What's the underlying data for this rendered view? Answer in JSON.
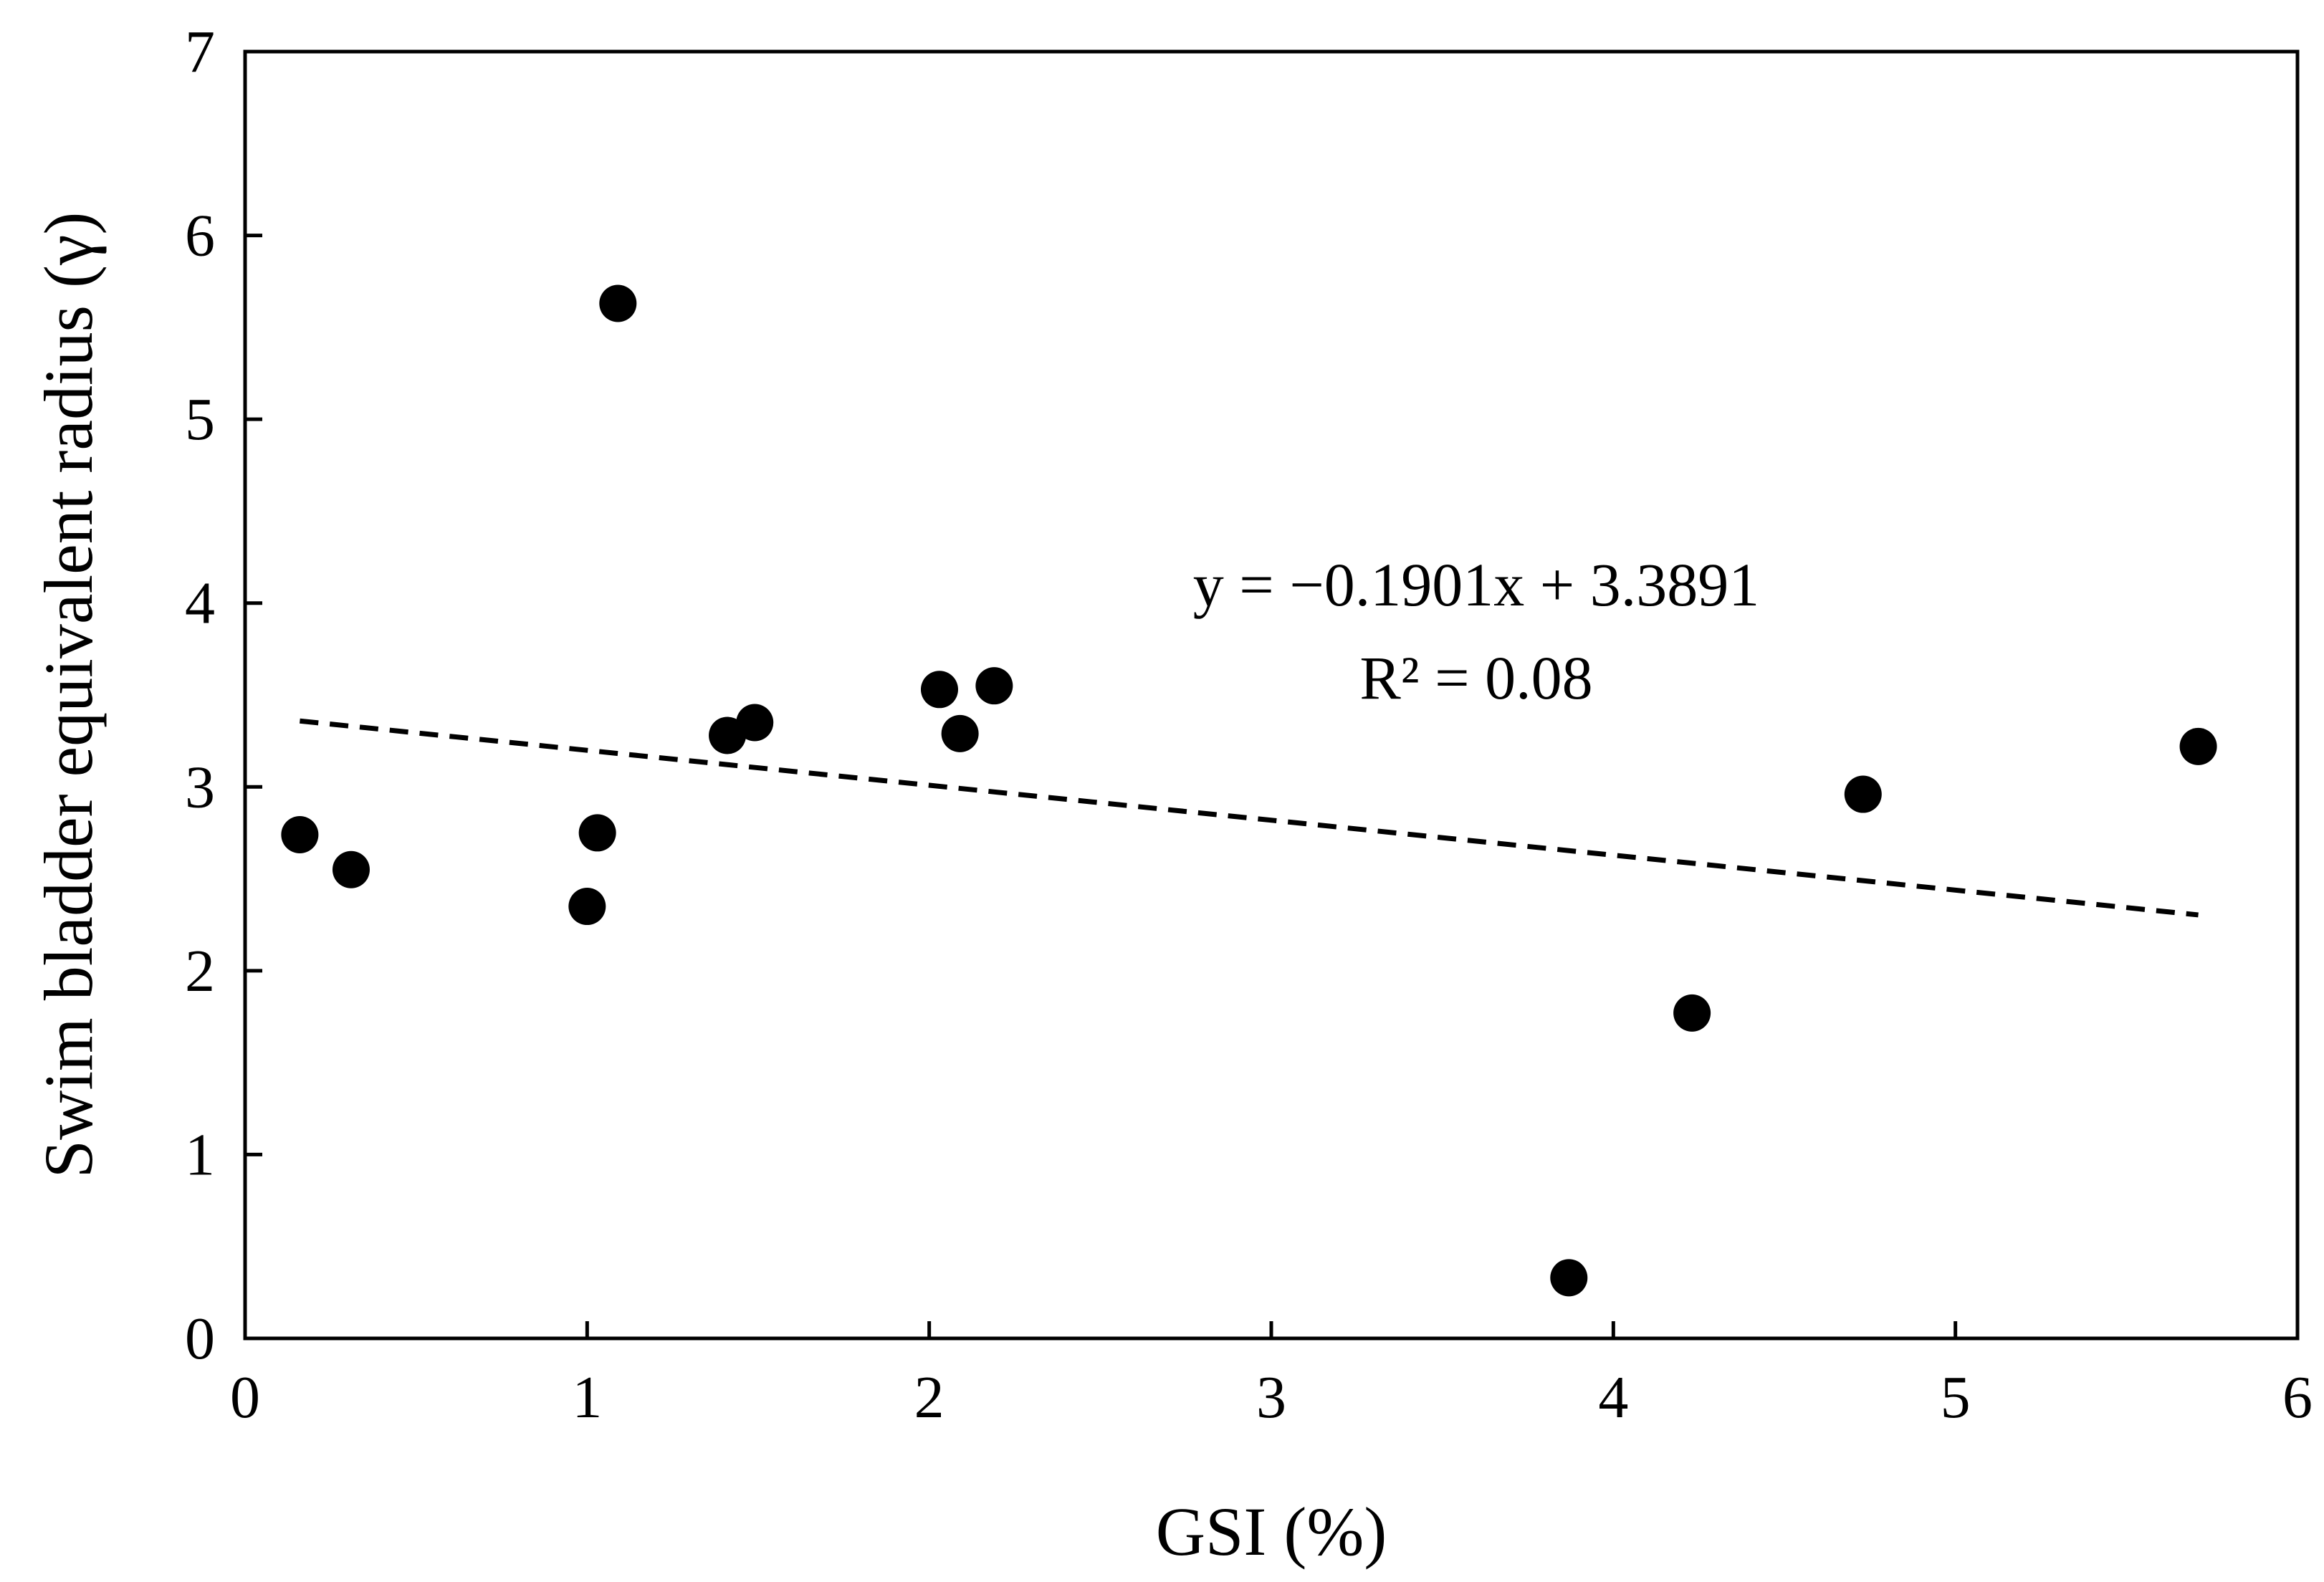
{
  "chart_data": {
    "type": "scatter",
    "title": "",
    "xlabel": "GSI (%)",
    "ylabel": "Swim bladder equivalent radius (γ)",
    "xlim": [
      0,
      6
    ],
    "ylim": [
      0,
      7
    ],
    "xticks": [
      0,
      1,
      2,
      3,
      4,
      5,
      6
    ],
    "yticks": [
      0,
      1,
      2,
      3,
      4,
      5,
      6,
      7
    ],
    "grid": false,
    "legend": "none",
    "marker_color": "#000000",
    "points": [
      {
        "x": 0.16,
        "y": 2.74
      },
      {
        "x": 0.31,
        "y": 2.55
      },
      {
        "x": 1.0,
        "y": 2.35
      },
      {
        "x": 1.03,
        "y": 2.75
      },
      {
        "x": 1.09,
        "y": 5.63
      },
      {
        "x": 1.41,
        "y": 3.28
      },
      {
        "x": 1.49,
        "y": 3.35
      },
      {
        "x": 2.03,
        "y": 3.53
      },
      {
        "x": 2.09,
        "y": 3.29
      },
      {
        "x": 2.19,
        "y": 3.55
      },
      {
        "x": 3.87,
        "y": 0.33
      },
      {
        "x": 4.23,
        "y": 1.77
      },
      {
        "x": 4.73,
        "y": 2.96
      },
      {
        "x": 5.71,
        "y": 3.22
      }
    ],
    "trendline": {
      "style": "dashed",
      "slope": -0.1901,
      "intercept": 3.3891,
      "x_range": [
        0.16,
        5.71
      ]
    },
    "annotations": {
      "equation": "y = −0.1901x + 3.3891",
      "r_squared": "R² = 0.08"
    }
  }
}
